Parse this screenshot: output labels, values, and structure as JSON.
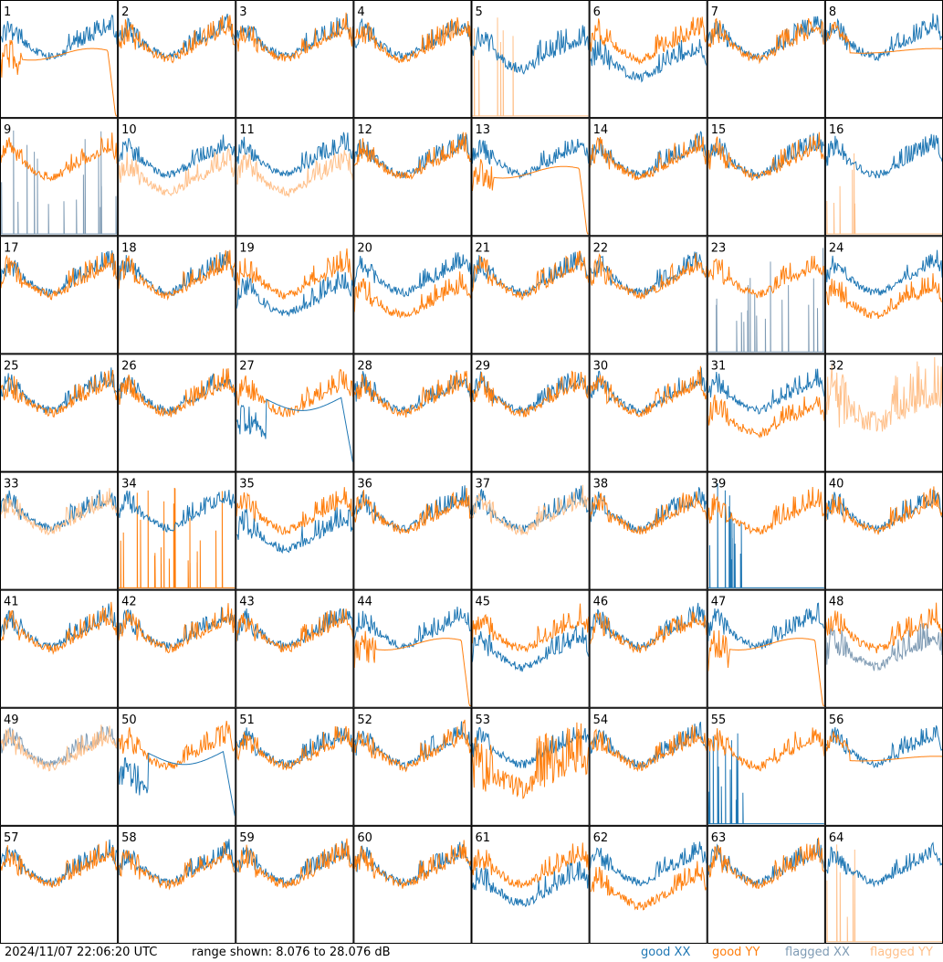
{
  "chart_data": {
    "type": "line",
    "panel_labels": [
      "1",
      "2",
      "3",
      "4",
      "5",
      "6",
      "7",
      "8",
      "9",
      "10",
      "11",
      "12",
      "13",
      "14",
      "15",
      "16",
      "17",
      "18",
      "19",
      "20",
      "21",
      "22",
      "23",
      "24",
      "25",
      "26",
      "27",
      "28",
      "29",
      "30",
      "31",
      "32",
      "33",
      "34",
      "35",
      "36",
      "37",
      "38",
      "39",
      "40",
      "41",
      "42",
      "43",
      "44",
      "45",
      "46",
      "47",
      "48",
      "49",
      "50",
      "51",
      "52",
      "53",
      "54",
      "55",
      "56",
      "57",
      "58",
      "59",
      "60",
      "61",
      "62",
      "63",
      "64"
    ],
    "ylim": [
      8.076,
      28.076
    ],
    "y_unit": "dB",
    "grid_columns": 8,
    "grid_rows": 8,
    "series": [
      {
        "name": "good XX",
        "color": "#1f77b4"
      },
      {
        "name": "good YY",
        "color": "#ff7f0e"
      },
      {
        "name": "flagged XX",
        "color": "#7f9bb4"
      },
      {
        "name": "flagged YY",
        "color": "#ffc08a"
      }
    ],
    "panel_styles": {
      "1": "yy_dropout",
      "5": "xx_dip_yy_flagged",
      "6": "xx_low",
      "8": "yy_flat",
      "9": "xx_flagged_spikes",
      "10": "yy_flagged_low",
      "11": "yy_flagged_low",
      "13": "yy_dropout",
      "16": "yy_flagged_spikes",
      "19": "xx_low",
      "20": "yy_low",
      "23": "xx_flagged_spikes",
      "24": "yy_low",
      "27": "xx_spikes_dropout",
      "31": "yy_low",
      "32": "yy_flagged_only",
      "33": "yy_flagged_similar",
      "34": "yy_spikes",
      "35": "xx_low",
      "37": "yy_flagged_similar",
      "39": "xx_spikes_short",
      "44": "yy_dropout",
      "45": "xx_low",
      "47": "yy_dropout",
      "48": "xx_flagged_low",
      "49": "both_flagged",
      "50": "xx_dropout",
      "53": "yy_spikes_low",
      "55": "xx_spikes_short",
      "56": "yy_flat",
      "61": "xx_low",
      "62": "yy_low",
      "64": "yy_flagged_spikes"
    },
    "curve_shape": "peak near left edge, dip in middle, rising ripple toward right, small notch at right"
  },
  "footer": {
    "timestamp": "2024/11/07 22:06:20 UTC",
    "range_text": "range shown: 8.076 to 28.076 dB",
    "legend": {
      "good_xx": "good XX",
      "good_yy": "good YY",
      "flagged_xx": "flagged XX",
      "flagged_yy": "flagged YY"
    }
  }
}
